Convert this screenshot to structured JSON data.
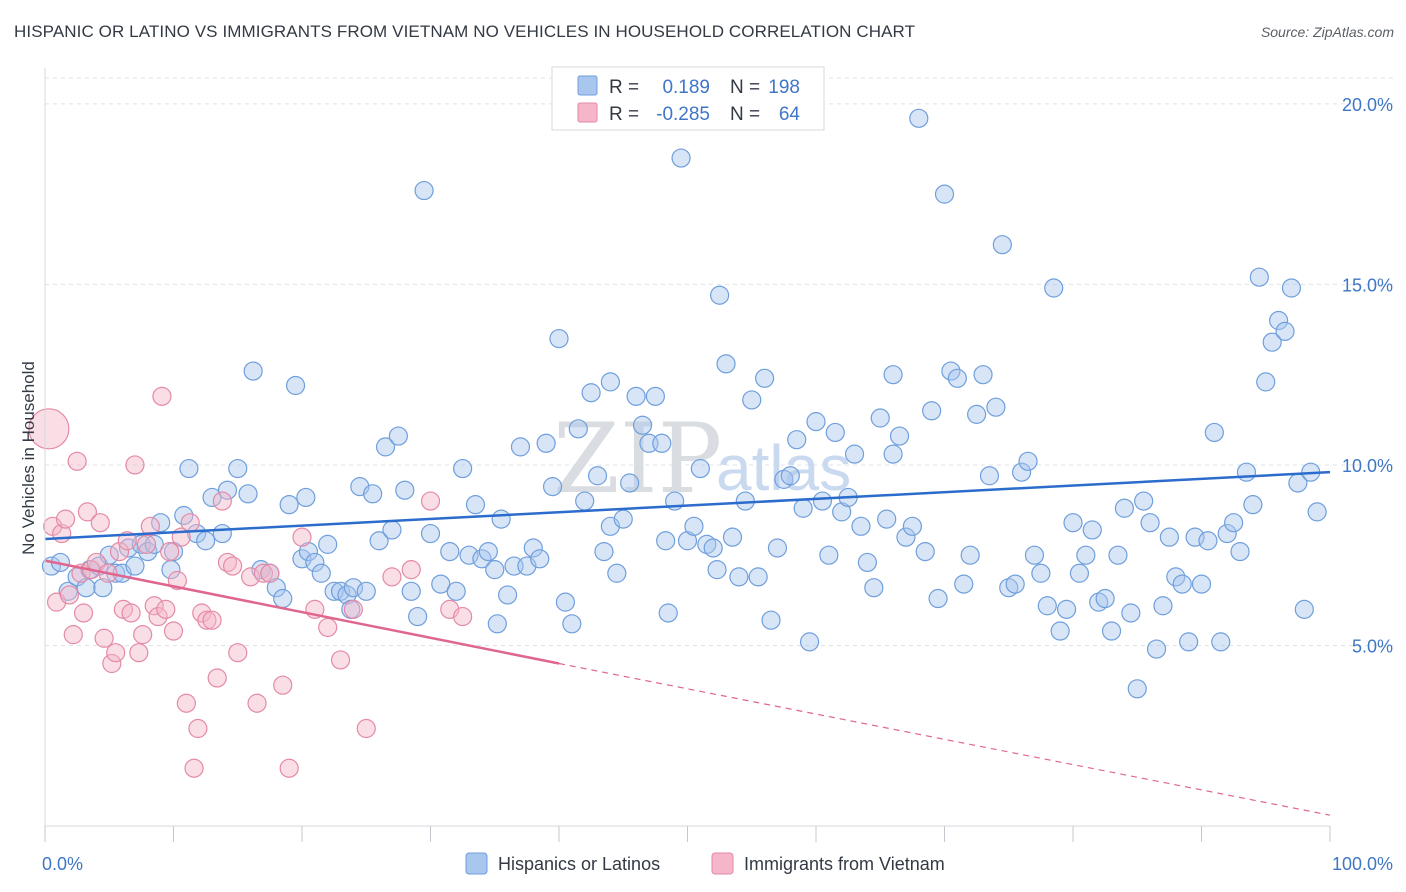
{
  "title": "HISPANIC OR LATINO VS IMMIGRANTS FROM VIETNAM NO VEHICLES IN HOUSEHOLD CORRELATION CHART",
  "source": "Source: ZipAtlas.com",
  "watermark": {
    "zip": "ZIP",
    "atlas": "atlas"
  },
  "colors": {
    "blue_fill": "#a9c6ee",
    "blue_stroke": "#6f9fdc",
    "blue_line": "#2b6ccc",
    "pink_fill": "#f4b6c8",
    "pink_stroke": "#e48aa6",
    "pink_line": "#e0668f",
    "grid": "#dfe3e8",
    "axis_text": "#3f76c6"
  },
  "legend_stats": [
    {
      "r_label": "R =",
      "r_value": "0.189",
      "n_label": "N =",
      "n_value": "198"
    },
    {
      "r_label": "R =",
      "r_value": "-0.285",
      "n_label": "N =",
      "n_value": "64"
    }
  ],
  "chart_data": {
    "type": "scatter",
    "title": "HISPANIC OR LATINO VS IMMIGRANTS FROM VIETNAM NO VEHICLES IN HOUSEHOLD CORRELATION CHART",
    "xlabel": "",
    "ylabel": "No Vehicles in Household",
    "xlim": [
      0,
      100
    ],
    "ylim": [
      0,
      20.8
    ],
    "x_tick_labels": [
      "0.0%",
      "100.0%"
    ],
    "y_ticks": [
      5,
      10,
      15,
      20
    ],
    "y_tick_labels": [
      "5.0%",
      "10.0%",
      "15.0%",
      "20.0%"
    ],
    "grid": true,
    "legend_position": "bottom",
    "series": [
      {
        "name": "Hispanics or Latinos",
        "color": "#a9c6ee",
        "trend": {
          "x": [
            0,
            100
          ],
          "y": [
            7.95,
            9.8
          ],
          "style": "solid"
        },
        "points": [
          [
            0.5,
            7.2
          ],
          [
            1.2,
            7.3
          ],
          [
            1.8,
            6.5
          ],
          [
            2.5,
            6.9
          ],
          [
            3.2,
            6.6
          ],
          [
            3.5,
            7.1
          ],
          [
            4.2,
            7.2
          ],
          [
            4.5,
            6.6
          ],
          [
            5.0,
            7.5
          ],
          [
            5.5,
            7.0
          ],
          [
            6.0,
            7.0
          ],
          [
            6.5,
            7.7
          ],
          [
            7.0,
            7.2
          ],
          [
            7.5,
            7.8
          ],
          [
            8.0,
            7.6
          ],
          [
            8.5,
            7.8
          ],
          [
            9.0,
            8.4
          ],
          [
            9.8,
            7.1
          ],
          [
            10.0,
            7.6
          ],
          [
            10.8,
            8.6
          ],
          [
            11.2,
            9.9
          ],
          [
            11.8,
            8.1
          ],
          [
            12.5,
            7.9
          ],
          [
            13.0,
            9.1
          ],
          [
            13.8,
            8.1
          ],
          [
            14.2,
            9.3
          ],
          [
            15.0,
            9.9
          ],
          [
            15.8,
            9.2
          ],
          [
            16.2,
            12.6
          ],
          [
            16.8,
            7.1
          ],
          [
            17.5,
            7.0
          ],
          [
            18.0,
            6.6
          ],
          [
            18.5,
            6.3
          ],
          [
            19.0,
            8.9
          ],
          [
            19.5,
            12.2
          ],
          [
            20.0,
            7.4
          ],
          [
            20.5,
            7.6
          ],
          [
            21.0,
            7.3
          ],
          [
            21.5,
            7.0
          ],
          [
            22.0,
            7.8
          ],
          [
            22.5,
            6.5
          ],
          [
            23.0,
            6.5
          ],
          [
            23.5,
            6.4
          ],
          [
            24.0,
            6.6
          ],
          [
            24.5,
            9.4
          ],
          [
            25.0,
            6.5
          ],
          [
            25.5,
            9.2
          ],
          [
            26.0,
            7.9
          ],
          [
            26.5,
            10.5
          ],
          [
            27.0,
            8.2
          ],
          [
            27.5,
            10.8
          ],
          [
            28.0,
            9.3
          ],
          [
            28.5,
            6.5
          ],
          [
            29.0,
            5.8
          ],
          [
            29.5,
            17.6
          ],
          [
            30.0,
            8.1
          ],
          [
            30.8,
            6.7
          ],
          [
            31.5,
            7.6
          ],
          [
            32.0,
            6.5
          ],
          [
            32.5,
            9.9
          ],
          [
            33.0,
            7.5
          ],
          [
            33.5,
            8.9
          ],
          [
            34.0,
            7.4
          ],
          [
            34.5,
            7.6
          ],
          [
            35.0,
            7.1
          ],
          [
            35.5,
            8.5
          ],
          [
            36.0,
            6.4
          ],
          [
            36.5,
            7.2
          ],
          [
            37.0,
            10.5
          ],
          [
            37.5,
            7.2
          ],
          [
            38.0,
            7.7
          ],
          [
            38.5,
            7.4
          ],
          [
            39.0,
            10.6
          ],
          [
            39.5,
            9.4
          ],
          [
            40.0,
            13.5
          ],
          [
            40.5,
            6.2
          ],
          [
            41.0,
            5.6
          ],
          [
            41.5,
            11.0
          ],
          [
            42.0,
            9.0
          ],
          [
            42.5,
            12.0
          ],
          [
            43.0,
            9.7
          ],
          [
            43.5,
            7.6
          ],
          [
            44.0,
            8.3
          ],
          [
            44.5,
            7.0
          ],
          [
            45.0,
            8.5
          ],
          [
            45.5,
            9.5
          ],
          [
            46.0,
            11.9
          ],
          [
            46.5,
            11.1
          ],
          [
            47.0,
            10.6
          ],
          [
            47.5,
            11.9
          ],
          [
            48.0,
            10.6
          ],
          [
            48.5,
            5.9
          ],
          [
            49.0,
            9.0
          ],
          [
            49.5,
            18.5
          ],
          [
            50.0,
            7.9
          ],
          [
            50.5,
            8.3
          ],
          [
            51.0,
            9.9
          ],
          [
            51.5,
            7.8
          ],
          [
            52.0,
            7.7
          ],
          [
            52.5,
            14.7
          ],
          [
            53.0,
            12.8
          ],
          [
            53.5,
            8.0
          ],
          [
            54.0,
            6.9
          ],
          [
            54.5,
            9.0
          ],
          [
            55.0,
            11.8
          ],
          [
            55.5,
            6.9
          ],
          [
            56.0,
            12.4
          ],
          [
            56.5,
            5.7
          ],
          [
            57.0,
            7.7
          ],
          [
            57.5,
            9.6
          ],
          [
            58.0,
            9.7
          ],
          [
            58.5,
            10.7
          ],
          [
            59.0,
            8.8
          ],
          [
            59.5,
            5.1
          ],
          [
            60.0,
            11.2
          ],
          [
            60.5,
            9.0
          ],
          [
            61.0,
            7.5
          ],
          [
            61.5,
            10.9
          ],
          [
            62.0,
            8.7
          ],
          [
            62.5,
            9.1
          ],
          [
            63.0,
            10.3
          ],
          [
            63.5,
            8.3
          ],
          [
            64.0,
            7.3
          ],
          [
            64.5,
            6.6
          ],
          [
            65.0,
            11.3
          ],
          [
            65.5,
            8.5
          ],
          [
            66.0,
            12.5
          ],
          [
            66.5,
            10.8
          ],
          [
            67.0,
            8.0
          ],
          [
            67.5,
            8.3
          ],
          [
            68.0,
            19.6
          ],
          [
            68.5,
            7.6
          ],
          [
            69.0,
            11.5
          ],
          [
            69.5,
            6.3
          ],
          [
            70.0,
            17.5
          ],
          [
            70.5,
            12.6
          ],
          [
            71.0,
            12.4
          ],
          [
            71.5,
            6.7
          ],
          [
            72.0,
            7.5
          ],
          [
            72.5,
            11.4
          ],
          [
            73.0,
            12.5
          ],
          [
            73.5,
            9.7
          ],
          [
            74.0,
            11.6
          ],
          [
            74.5,
            16.1
          ],
          [
            75.0,
            6.6
          ],
          [
            75.5,
            6.7
          ],
          [
            76.0,
            9.8
          ],
          [
            76.5,
            10.1
          ],
          [
            77.0,
            7.5
          ],
          [
            77.5,
            7.0
          ],
          [
            78.0,
            6.1
          ],
          [
            78.5,
            14.9
          ],
          [
            79.0,
            5.4
          ],
          [
            79.5,
            6.0
          ],
          [
            80.0,
            8.4
          ],
          [
            80.5,
            7.0
          ],
          [
            81.0,
            7.5
          ],
          [
            81.5,
            8.2
          ],
          [
            82.0,
            6.2
          ],
          [
            82.5,
            6.3
          ],
          [
            83.0,
            5.4
          ],
          [
            83.5,
            7.5
          ],
          [
            84.0,
            8.8
          ],
          [
            84.5,
            5.9
          ],
          [
            85.0,
            3.8
          ],
          [
            85.5,
            9.0
          ],
          [
            86.0,
            8.4
          ],
          [
            86.5,
            4.9
          ],
          [
            87.0,
            6.1
          ],
          [
            87.5,
            8.0
          ],
          [
            88.0,
            6.9
          ],
          [
            88.5,
            6.7
          ],
          [
            89.0,
            5.1
          ],
          [
            89.5,
            8.0
          ],
          [
            90.0,
            6.7
          ],
          [
            90.5,
            7.9
          ],
          [
            91.0,
            10.9
          ],
          [
            91.5,
            5.1
          ],
          [
            92.0,
            8.1
          ],
          [
            92.5,
            8.4
          ],
          [
            93.0,
            7.6
          ],
          [
            93.5,
            9.8
          ],
          [
            94.0,
            8.9
          ],
          [
            94.5,
            15.2
          ],
          [
            95.0,
            12.3
          ],
          [
            95.5,
            13.4
          ],
          [
            96.0,
            14.0
          ],
          [
            96.5,
            13.7
          ],
          [
            97.0,
            14.9
          ],
          [
            97.5,
            9.5
          ],
          [
            98.0,
            6.0
          ],
          [
            98.5,
            9.8
          ],
          [
            99.0,
            8.7
          ],
          [
            66.0,
            10.3
          ],
          [
            44.0,
            12.3
          ],
          [
            20.3,
            9.1
          ],
          [
            23.8,
            6.0
          ],
          [
            35.2,
            5.6
          ],
          [
            48.3,
            7.9
          ],
          [
            52.3,
            7.1
          ]
        ]
      },
      {
        "name": "Immigrants from Vietnam",
        "color": "#f4b6c8",
        "trend": {
          "x": [
            0,
            40,
            100
          ],
          "y": [
            7.35,
            4.5,
            0.3
          ],
          "style": "solid-then-dashed",
          "solid_until_x": 40
        },
        "points": [
          [
            0.3,
            11.0
          ],
          [
            0.6,
            8.3
          ],
          [
            0.9,
            6.2
          ],
          [
            1.3,
            8.1
          ],
          [
            1.6,
            8.5
          ],
          [
            1.9,
            6.4
          ],
          [
            2.2,
            5.3
          ],
          [
            2.5,
            10.1
          ],
          [
            2.8,
            7.0
          ],
          [
            3.0,
            5.9
          ],
          [
            3.3,
            8.7
          ],
          [
            3.6,
            7.1
          ],
          [
            4.0,
            7.3
          ],
          [
            4.3,
            8.4
          ],
          [
            4.6,
            5.2
          ],
          [
            4.9,
            7.0
          ],
          [
            5.2,
            4.5
          ],
          [
            5.5,
            4.8
          ],
          [
            5.8,
            7.6
          ],
          [
            6.1,
            6.0
          ],
          [
            6.4,
            7.9
          ],
          [
            6.7,
            5.9
          ],
          [
            7.0,
            10.0
          ],
          [
            7.3,
            4.8
          ],
          [
            7.6,
            5.3
          ],
          [
            7.9,
            7.8
          ],
          [
            8.2,
            8.3
          ],
          [
            8.5,
            6.1
          ],
          [
            8.8,
            5.8
          ],
          [
            9.1,
            11.9
          ],
          [
            9.4,
            6.0
          ],
          [
            9.7,
            7.6
          ],
          [
            10.0,
            5.4
          ],
          [
            10.3,
            6.8
          ],
          [
            10.6,
            8.0
          ],
          [
            11.0,
            3.4
          ],
          [
            11.3,
            8.4
          ],
          [
            11.6,
            1.6
          ],
          [
            11.9,
            2.7
          ],
          [
            12.2,
            5.9
          ],
          [
            12.6,
            5.7
          ],
          [
            13.0,
            5.7
          ],
          [
            13.4,
            4.1
          ],
          [
            13.8,
            9.0
          ],
          [
            14.2,
            7.3
          ],
          [
            14.6,
            7.2
          ],
          [
            15.0,
            4.8
          ],
          [
            16.0,
            6.9
          ],
          [
            16.5,
            3.4
          ],
          [
            17.0,
            7.0
          ],
          [
            17.5,
            7.0
          ],
          [
            18.5,
            3.9
          ],
          [
            19.0,
            1.6
          ],
          [
            20.0,
            8.0
          ],
          [
            21.0,
            6.0
          ],
          [
            22.0,
            5.5
          ],
          [
            23.0,
            4.6
          ],
          [
            24.0,
            6.0
          ],
          [
            25.0,
            2.7
          ],
          [
            27.0,
            6.9
          ],
          [
            28.5,
            7.1
          ],
          [
            30.0,
            9.0
          ],
          [
            31.5,
            6.0
          ],
          [
            32.5,
            5.8
          ]
        ]
      }
    ]
  }
}
